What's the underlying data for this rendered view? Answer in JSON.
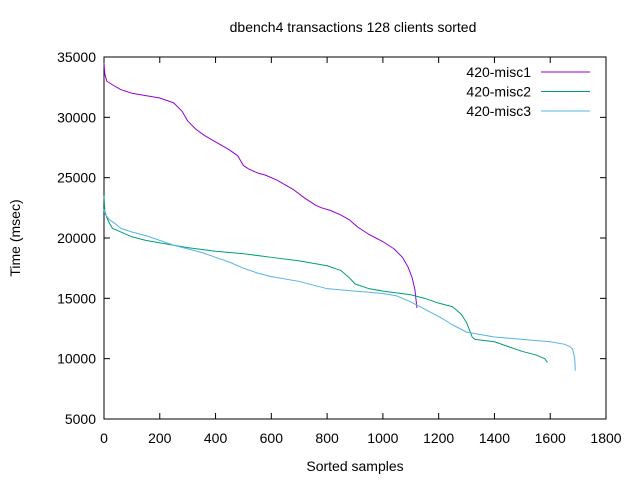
{
  "chart_data": {
    "type": "line",
    "title": "dbench4 transactions 128 clients sorted",
    "xlabel": "Sorted samples",
    "ylabel": "Time (msec)",
    "xlim": [
      0,
      1800
    ],
    "ylim": [
      5000,
      35000
    ],
    "x_ticks": [
      0,
      200,
      400,
      600,
      800,
      1000,
      1200,
      1400,
      1600,
      1800
    ],
    "y_ticks": [
      5000,
      10000,
      15000,
      20000,
      25000,
      30000,
      35000
    ],
    "grid": false,
    "legend_position": "top-right",
    "series": [
      {
        "name": "420-misc1",
        "color": "#9400d3",
        "x": [
          0,
          3,
          10,
          30,
          60,
          100,
          150,
          200,
          250,
          280,
          300,
          330,
          360,
          390,
          420,
          450,
          480,
          500,
          520,
          550,
          580,
          620,
          650,
          680,
          720,
          760,
          780,
          810,
          850,
          880,
          910,
          950,
          1000,
          1040,
          1070,
          1090,
          1105,
          1115,
          1122
        ],
        "y": [
          34500,
          33600,
          33000,
          32700,
          32300,
          32000,
          31800,
          31600,
          31200,
          30500,
          29700,
          29000,
          28500,
          28100,
          27700,
          27300,
          26800,
          26000,
          25700,
          25400,
          25200,
          24800,
          24400,
          24000,
          23300,
          22700,
          22500,
          22300,
          21900,
          21500,
          20900,
          20300,
          19700,
          19100,
          18400,
          17600,
          16700,
          15700,
          14200
        ]
      },
      {
        "name": "420-misc2",
        "color": "#009e73",
        "x": [
          0,
          3,
          10,
          20,
          30,
          60,
          100,
          150,
          200,
          300,
          400,
          500,
          600,
          700,
          800,
          850,
          880,
          900,
          950,
          1000,
          1100,
          1150,
          1200,
          1250,
          1280,
          1300,
          1320,
          1330,
          1400,
          1450,
          1500,
          1550,
          1580,
          1590
        ],
        "y": [
          23500,
          22200,
          21700,
          21200,
          20800,
          20500,
          20100,
          19800,
          19600,
          19200,
          18900,
          18700,
          18400,
          18100,
          17700,
          17300,
          16700,
          16200,
          15800,
          15600,
          15300,
          15000,
          14600,
          14300,
          13700,
          13000,
          11800,
          11600,
          11400,
          11000,
          10600,
          10300,
          10000,
          9700
        ]
      },
      {
        "name": "420-misc3",
        "color": "#56b4e9",
        "x": [
          0,
          3,
          10,
          20,
          40,
          60,
          100,
          150,
          200,
          250,
          300,
          350,
          400,
          450,
          500,
          550,
          600,
          700,
          800,
          900,
          1000,
          1050,
          1100,
          1150,
          1200,
          1250,
          1300,
          1400,
          1500,
          1600,
          1650,
          1670,
          1680,
          1688,
          1690
        ],
        "y": [
          22400,
          22000,
          21800,
          21500,
          21200,
          20800,
          20500,
          20200,
          19800,
          19400,
          19100,
          18800,
          18400,
          18000,
          17500,
          17100,
          16800,
          16400,
          15800,
          15600,
          15400,
          15200,
          14700,
          14100,
          13500,
          12800,
          12200,
          11800,
          11600,
          11400,
          11200,
          11000,
          10800,
          10000,
          9000
        ]
      }
    ]
  }
}
